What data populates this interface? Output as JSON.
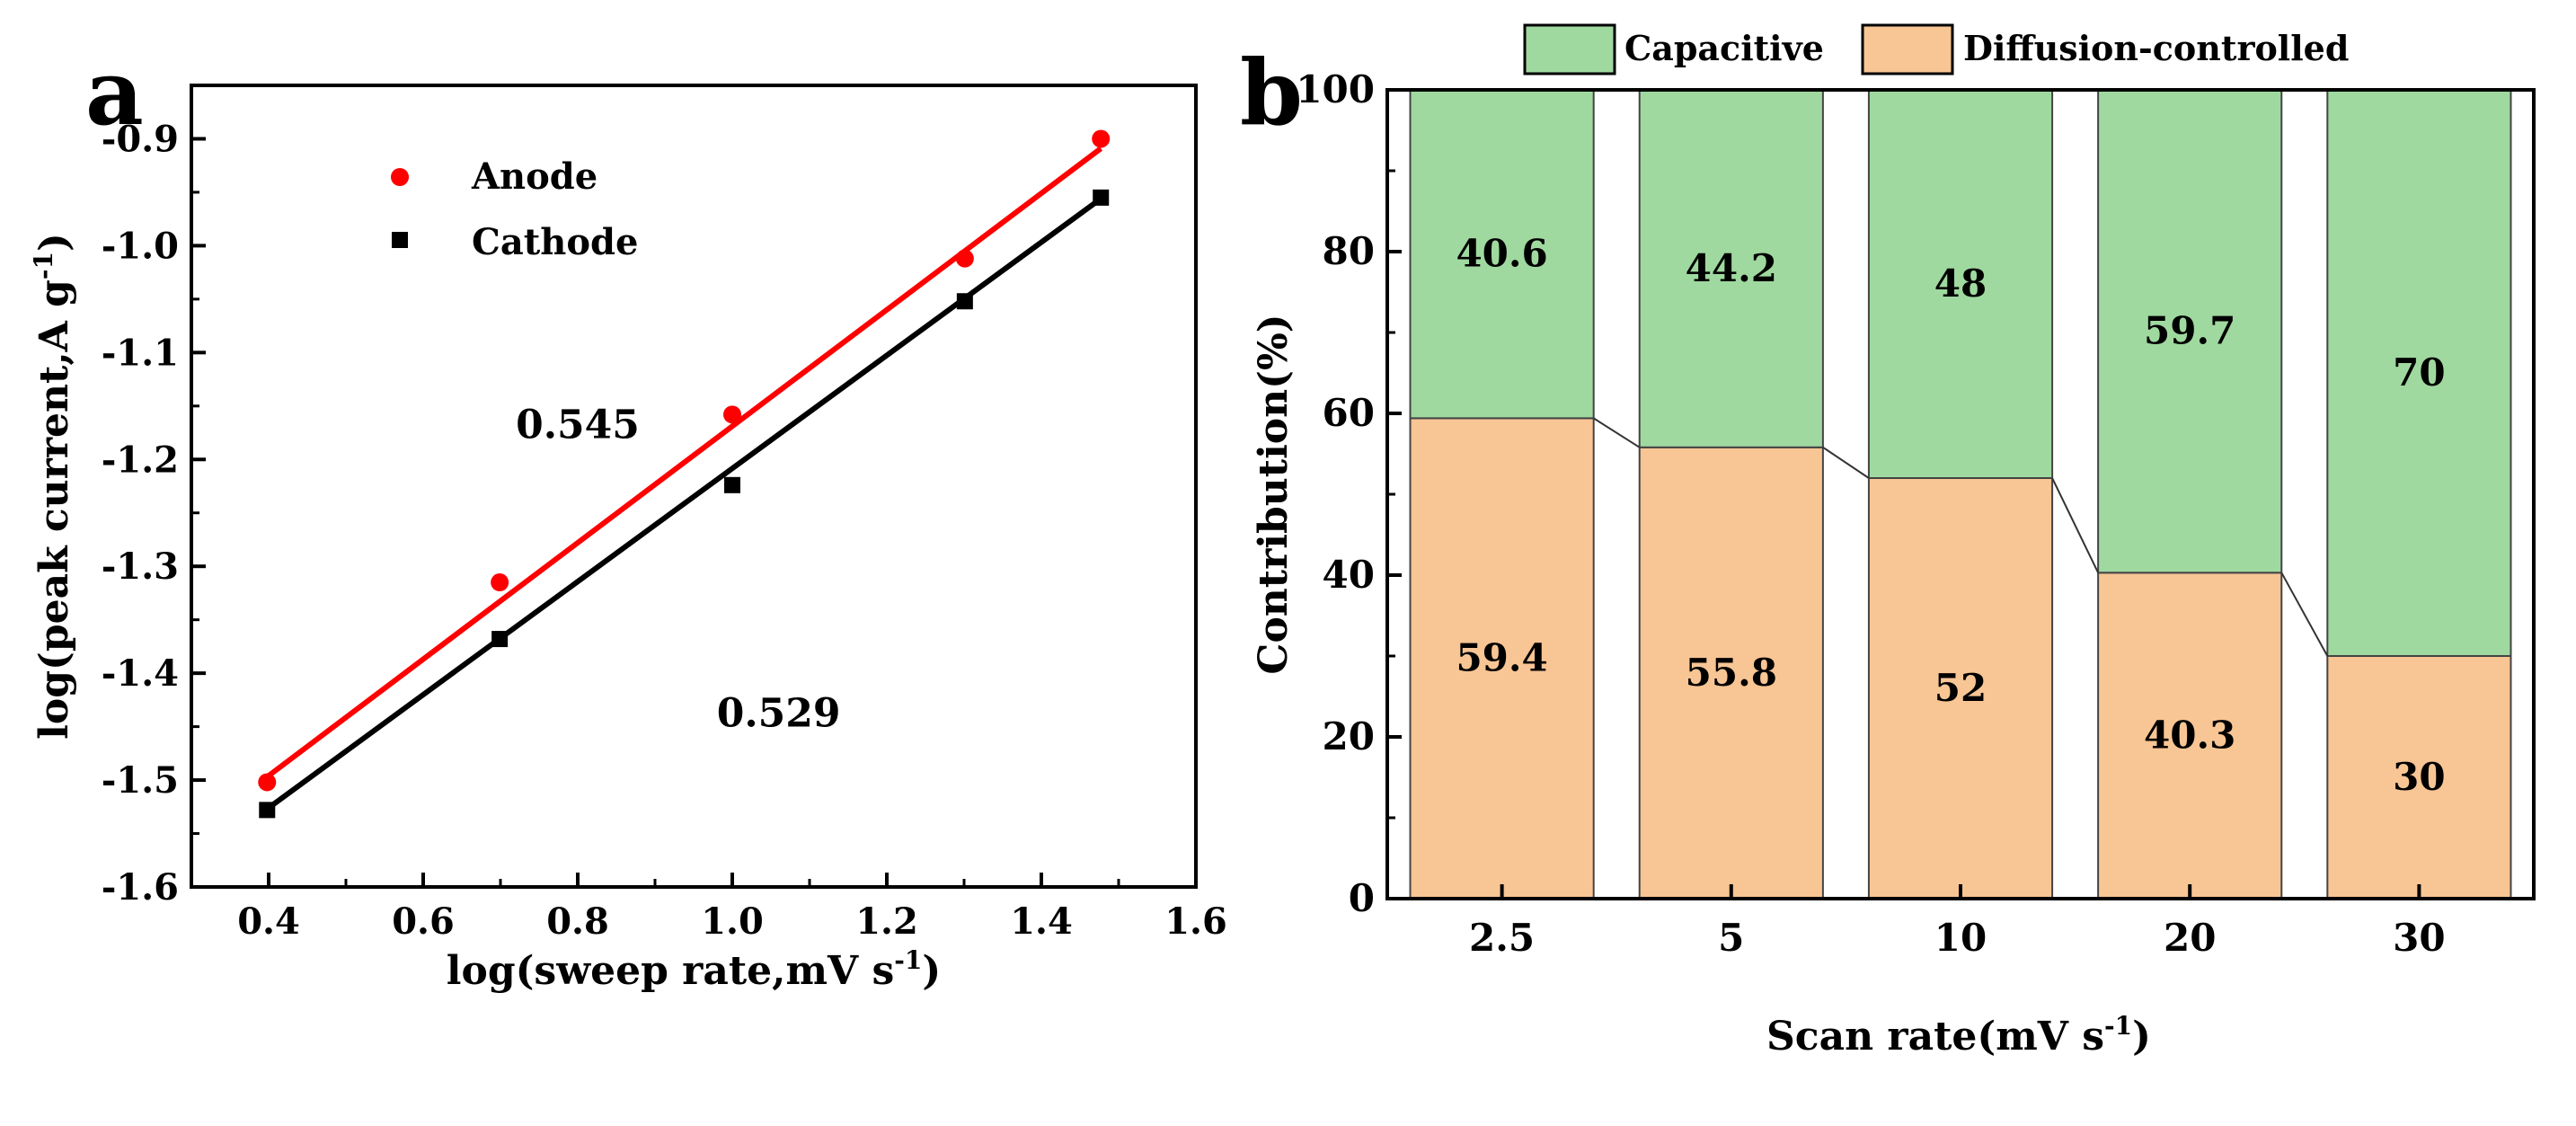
{
  "panel_a": {
    "label": "a",
    "chart_data": {
      "type": "scatter",
      "xlabel_main": "log(sweep rate,mV s",
      "xlabel_sup": "-1",
      "xlabel_end": ")",
      "ylabel_main": "log(peak current,A g",
      "ylabel_sup": "-1",
      "ylabel_end": ")",
      "xlim": [
        0.3,
        1.6
      ],
      "ylim": [
        -1.6,
        -0.85
      ],
      "xticks": [
        "0.4",
        "0.6",
        "0.8",
        "1.0",
        "1.2",
        "1.4",
        "1.6"
      ],
      "yticks": [
        "-1.6",
        "-1.5",
        "-1.4",
        "-1.3",
        "-1.2",
        "-1.1",
        "-1.0",
        "-0.9"
      ],
      "legend_position": "top-left",
      "series": [
        {
          "name": "Anode",
          "marker": "circle",
          "color": "#ff0000",
          "x": [
            0.398,
            0.699,
            1.0,
            1.301,
            1.477
          ],
          "y": [
            -1.502,
            -1.315,
            -1.158,
            -1.012,
            -0.9
          ],
          "fit": {
            "slope": 0.545,
            "x": [
              0.398,
              1.477
            ],
            "y": [
              -1.497,
              -0.909
            ]
          },
          "slope_label": "0.545",
          "slope_label_at": [
            0.8,
            -1.18
          ]
        },
        {
          "name": "Cathode",
          "marker": "square",
          "color": "#000000",
          "x": [
            0.398,
            0.699,
            1.0,
            1.301,
            1.477
          ],
          "y": [
            -1.528,
            -1.368,
            -1.224,
            -1.052,
            -0.955
          ],
          "fit": {
            "slope": 0.529,
            "x": [
              0.398,
              1.477
            ],
            "y": [
              -1.527,
              -0.956
            ]
          },
          "slope_label": "0.529",
          "slope_label_at": [
            1.06,
            -1.45
          ]
        }
      ]
    }
  },
  "panel_b": {
    "label": "b",
    "chart_data": {
      "type": "bar",
      "stacked": true,
      "xlabel_main": "Scan rate(mV s",
      "xlabel_sup": "-1",
      "xlabel_end": ")",
      "ylabel": "Contribution(%)",
      "ylim": [
        0,
        100
      ],
      "yticks": [
        "0",
        "20",
        "40",
        "60",
        "80",
        "100"
      ],
      "categories": [
        "2.5",
        "5",
        "10",
        "20",
        "30"
      ],
      "legend_position": "top",
      "series": [
        {
          "name": "Diffusion-controlled",
          "color": "#f8c594",
          "values": [
            59.4,
            55.8,
            52,
            40.3,
            30
          ],
          "labels": [
            "59.4",
            "55.8",
            "52",
            "40.3",
            "30"
          ]
        },
        {
          "name": "Capacitive",
          "color": "#9fd99f",
          "values": [
            40.6,
            44.2,
            48,
            59.7,
            70
          ],
          "labels": [
            "40.6",
            "44.2",
            "48",
            "59.7",
            "70"
          ]
        }
      ],
      "legend": [
        "Capacitive",
        "Diffusion-controlled"
      ]
    }
  }
}
